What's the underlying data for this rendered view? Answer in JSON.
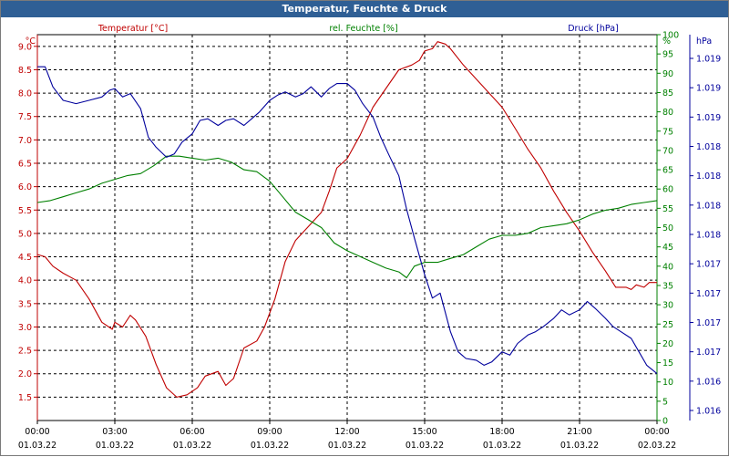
{
  "title": "Temperatur, Feuchte & Druck",
  "colors": {
    "temperature": "#c00000",
    "humidity": "#008000",
    "pressure": "#00009c",
    "grid": "#000000",
    "titlebar": "#2f5f95"
  },
  "chart_data": {
    "type": "line",
    "title": "Temperatur, Feuchte & Druck",
    "grid": true,
    "x_ticks": [
      {
        "time": "00:00",
        "date": "01.03.22"
      },
      {
        "time": "03:00",
        "date": "01.03.22"
      },
      {
        "time": "06:00",
        "date": "01.03.22"
      },
      {
        "time": "09:00",
        "date": "01.03.22"
      },
      {
        "time": "12:00",
        "date": "01.03.22"
      },
      {
        "time": "15:00",
        "date": "01.03.22"
      },
      {
        "time": "18:00",
        "date": "01.03.22"
      },
      {
        "time": "21:00",
        "date": "01.03.22"
      },
      {
        "time": "00:00",
        "date": "02.03.22"
      }
    ],
    "x_hours_range": [
      0,
      24
    ],
    "axes": {
      "temperature": {
        "label": "Temperatur [°C]",
        "unit": "°C",
        "range": [
          1.0,
          9.25
        ],
        "ticks": [
          "1.5",
          "2.0",
          "2.5",
          "3.0",
          "3.5",
          "4.0",
          "4.5",
          "5.0",
          "5.5",
          "6.0",
          "6.5",
          "7.0",
          "7.5",
          "8.0",
          "8.5",
          "9.0"
        ]
      },
      "humidity": {
        "label": "rel. Feuchte [%]",
        "unit": "%",
        "range": [
          0,
          100
        ],
        "ticks": [
          "0",
          "5",
          "10",
          "15",
          "20",
          "25",
          "30",
          "35",
          "40",
          "45",
          "50",
          "55",
          "60",
          "65",
          "70",
          "75",
          "80",
          "85",
          "90",
          "95",
          "100"
        ]
      },
      "pressure": {
        "label": "Druck [hPa]",
        "unit": "hPa",
        "ticks": [
          "1.016",
          "1.016",
          "1.017",
          "1.017",
          "1.017",
          "1.017",
          "1.018",
          "1.018",
          "1.018",
          "1.018",
          "1.019",
          "1.019",
          "1.019"
        ]
      }
    },
    "series": [
      {
        "name": "Temperatur [°C]",
        "axis": "temperature",
        "hours": [
          0,
          0.3,
          0.6,
          1,
          1.5,
          2,
          2.5,
          2.9,
          3,
          3.3,
          3.6,
          3.8,
          4.2,
          4.6,
          5,
          5.4,
          5.8,
          6.2,
          6.5,
          7,
          7.3,
          7.6,
          8,
          8.5,
          8.8,
          9.2,
          9.6,
          10,
          10.5,
          11,
          11.3,
          11.6,
          12,
          12.5,
          13,
          13.5,
          14,
          14.5,
          14.8,
          15,
          15.3,
          15.5,
          15.8,
          16,
          16.5,
          17,
          17.5,
          18,
          18.5,
          19,
          19.5,
          20,
          20.5,
          21,
          21.5,
          22,
          22.4,
          22.8,
          23,
          23.2,
          23.5,
          23.7,
          24
        ],
        "values": [
          4.55,
          4.5,
          4.3,
          4.15,
          4.0,
          3.6,
          3.1,
          2.95,
          3.1,
          3.0,
          3.25,
          3.15,
          2.8,
          2.2,
          1.7,
          1.5,
          1.55,
          1.7,
          1.95,
          2.05,
          1.75,
          1.9,
          2.55,
          2.7,
          3.0,
          3.6,
          4.4,
          4.85,
          5.15,
          5.45,
          5.9,
          6.4,
          6.6,
          7.1,
          7.7,
          8.1,
          8.5,
          8.6,
          8.7,
          8.9,
          8.95,
          9.1,
          9.05,
          8.95,
          8.6,
          8.3,
          8.0,
          7.7,
          7.25,
          6.8,
          6.4,
          5.9,
          5.45,
          5.05,
          4.6,
          4.2,
          3.85,
          3.85,
          3.8,
          3.9,
          3.85,
          3.95,
          3.95
        ]
      },
      {
        "name": "rel. Feuchte [%]",
        "axis": "humidity",
        "hours": [
          0,
          0.5,
          1,
          1.5,
          2,
          2.5,
          3,
          3.5,
          4,
          4.5,
          5,
          5.5,
          6,
          6.5,
          7,
          7.5,
          8,
          8.5,
          9,
          9.5,
          10,
          10.5,
          11,
          11.5,
          12,
          12.5,
          13,
          13.5,
          14,
          14.3,
          14.6,
          15,
          15.5,
          16,
          16.5,
          17,
          17.5,
          18,
          18.5,
          19,
          19.5,
          20,
          20.5,
          21,
          21.5,
          22,
          22.5,
          23,
          23.5,
          24
        ],
        "values": [
          56.5,
          57,
          58,
          59,
          60,
          61.5,
          62.5,
          63.5,
          64,
          66,
          68.5,
          68.5,
          68,
          67.5,
          68,
          67,
          65,
          64.5,
          62,
          58,
          54,
          52,
          50,
          46,
          44,
          42.5,
          41,
          39.5,
          38.5,
          37,
          40,
          41,
          41,
          42,
          43,
          45,
          47,
          48,
          48,
          48.5,
          50,
          50.5,
          51,
          52,
          53.5,
          54.5,
          55,
          56,
          56.5,
          57
        ]
      },
      {
        "name": "Druck [hPa]",
        "axis": "pressure",
        "hours": [
          0,
          0.3,
          0.6,
          1,
          1.5,
          2,
          2.5,
          2.8,
          3,
          3.3,
          3.6,
          4,
          4.3,
          4.6,
          5,
          5.3,
          5.6,
          6,
          6.3,
          6.6,
          7,
          7.3,
          7.6,
          8,
          8.3,
          8.6,
          9,
          9.3,
          9.6,
          10,
          10.3,
          10.6,
          11,
          11.3,
          11.6,
          12,
          12.3,
          12.6,
          13,
          13.3,
          13.6,
          14,
          14.3,
          14.6,
          15,
          15.3,
          15.6,
          16,
          16.3,
          16.6,
          17,
          17.3,
          17.6,
          18,
          18.3,
          18.6,
          19,
          19.3,
          19.6,
          20,
          20.3,
          20.6,
          21,
          21.3,
          21.6,
          22,
          22.3,
          22.6,
          23,
          23.3,
          23.6,
          24
        ],
        "values": [
          1019.3,
          1019.3,
          1019.18,
          1019.1,
          1019.08,
          1019.1,
          1019.12,
          1019.16,
          1019.17,
          1019.12,
          1019.14,
          1019.05,
          1018.88,
          1018.82,
          1018.76,
          1018.78,
          1018.85,
          1018.9,
          1018.98,
          1018.99,
          1018.95,
          1018.98,
          1018.99,
          1018.95,
          1018.99,
          1019.03,
          1019.1,
          1019.13,
          1019.15,
          1019.12,
          1019.14,
          1019.18,
          1019.12,
          1019.17,
          1019.2,
          1019.2,
          1019.16,
          1019.08,
          1019.0,
          1018.88,
          1018.78,
          1018.65,
          1018.45,
          1018.28,
          1018.06,
          1017.92,
          1017.95,
          1017.72,
          1017.6,
          1017.56,
          1017.55,
          1017.52,
          1017.54,
          1017.6,
          1017.58,
          1017.65,
          1017.7,
          1017.72,
          1017.75,
          1017.8,
          1017.85,
          1017.82,
          1017.85,
          1017.9,
          1017.86,
          1017.8,
          1017.75,
          1017.72,
          1017.68,
          1017.6,
          1017.52,
          1017.47
        ]
      }
    ]
  }
}
